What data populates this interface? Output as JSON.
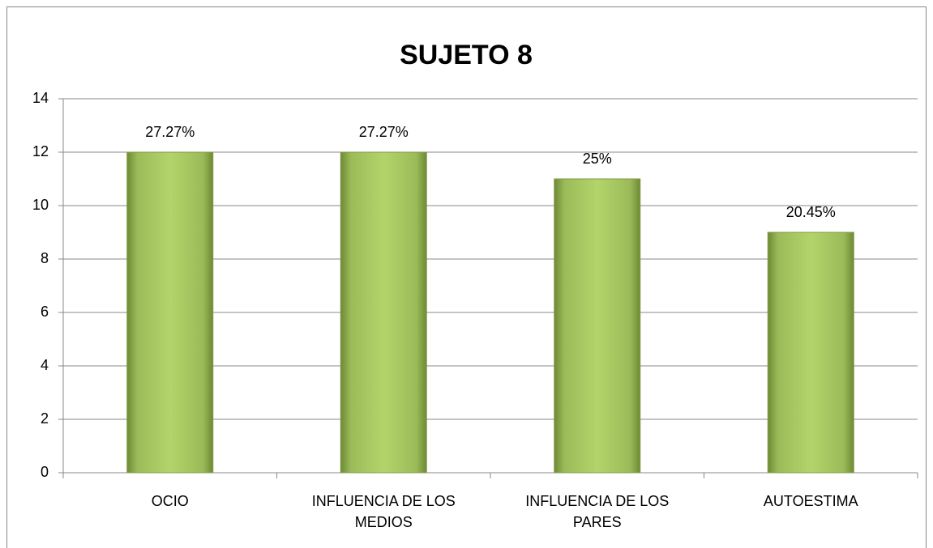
{
  "chart_data": {
    "type": "bar",
    "title": "SUJETO 8",
    "categories": [
      "OCIO",
      "INFLUENCIA DE LOS MEDIOS",
      "INFLUENCIA DE LOS PARES",
      "AUTOESTIMA"
    ],
    "values": [
      12,
      12,
      11,
      9
    ],
    "value_labels": [
      "27.27%",
      "27.27%",
      "25%",
      "20.45%"
    ],
    "color": "#9bbb59",
    "ylim": [
      0,
      14
    ],
    "yticks": [
      0,
      2,
      4,
      6,
      8,
      10,
      12,
      14
    ],
    "grid": true
  }
}
